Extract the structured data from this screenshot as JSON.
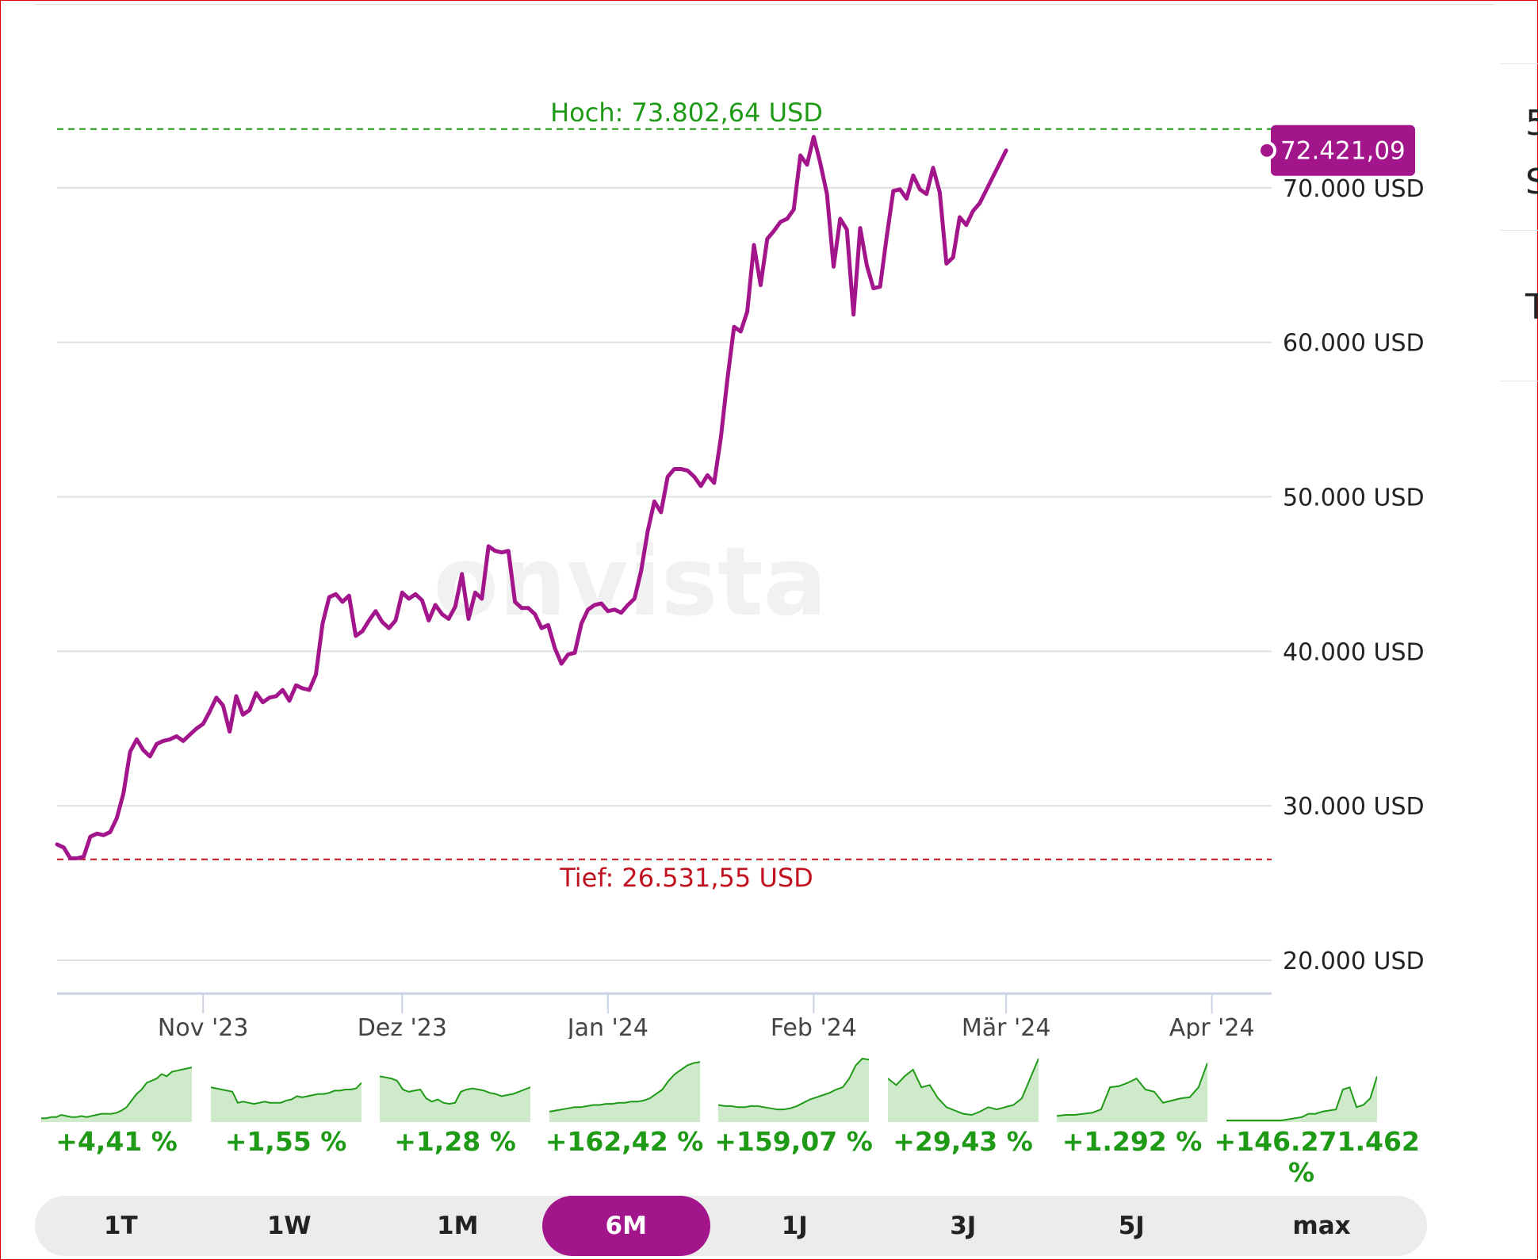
{
  "chart_data": {
    "type": "line",
    "x_start": "2023-10-10",
    "x_end": "2024-04-10",
    "ylim": [
      18000,
      76000
    ],
    "y_ticks": [
      20000,
      30000,
      40000,
      50000,
      60000,
      70000
    ],
    "y_tick_labels": [
      "20.000 USD",
      "30.000 USD",
      "40.000 USD",
      "50.000 USD",
      "60.000 USD",
      "70.000 USD"
    ],
    "x_ticks": [
      {
        "label": "Nov '23",
        "date": "2023-11-01"
      },
      {
        "label": "Dez '23",
        "date": "2023-12-01"
      },
      {
        "label": "Jan '24",
        "date": "2024-01-01"
      },
      {
        "label": "Feb '24",
        "date": "2024-02-01"
      },
      {
        "label": "Mär '24",
        "date": "2024-03-01"
      },
      {
        "label": "Apr '24",
        "date": "2024-04-01"
      }
    ],
    "high": {
      "label": "Hoch: 73.802,64 USD",
      "value": 73802.64,
      "color": "#1f9a17"
    },
    "low": {
      "label": "Tief: 26.531,55 USD",
      "value": 26531.55,
      "color": "#c1121f"
    },
    "last": {
      "label": "72.421,09",
      "value": 72421.09
    },
    "line_color": "#a3158b",
    "watermark": "onvista",
    "series": [
      {
        "points": [
          [
            "2023-10-10",
            27500
          ],
          [
            "2023-10-11",
            27300
          ],
          [
            "2023-10-12",
            26600
          ],
          [
            "2023-10-13",
            26600
          ],
          [
            "2023-10-14",
            26700
          ],
          [
            "2023-10-15",
            28000
          ],
          [
            "2023-10-16",
            28200
          ],
          [
            "2023-10-17",
            28100
          ],
          [
            "2023-10-18",
            28300
          ],
          [
            "2023-10-19",
            29200
          ],
          [
            "2023-10-20",
            30800
          ],
          [
            "2023-10-21",
            33500
          ],
          [
            "2023-10-22",
            34300
          ],
          [
            "2023-10-23",
            33600
          ],
          [
            "2023-10-24",
            33200
          ],
          [
            "2023-10-25",
            34000
          ],
          [
            "2023-10-26",
            34200
          ],
          [
            "2023-10-27",
            34300
          ],
          [
            "2023-10-28",
            34500
          ],
          [
            "2023-10-29",
            34200
          ],
          [
            "2023-10-30",
            34600
          ],
          [
            "2023-10-31",
            35000
          ],
          [
            "2023-11-01",
            35300
          ],
          [
            "2023-11-02",
            36100
          ],
          [
            "2023-11-03",
            37000
          ],
          [
            "2023-11-04",
            36500
          ],
          [
            "2023-11-05",
            34800
          ],
          [
            "2023-11-06",
            37100
          ],
          [
            "2023-11-07",
            35900
          ],
          [
            "2023-11-08",
            36200
          ],
          [
            "2023-11-09",
            37300
          ],
          [
            "2023-11-10",
            36700
          ],
          [
            "2023-11-11",
            37000
          ],
          [
            "2023-11-12",
            37100
          ],
          [
            "2023-11-13",
            37500
          ],
          [
            "2023-11-14",
            36800
          ],
          [
            "2023-11-15",
            37800
          ],
          [
            "2023-11-16",
            37600
          ],
          [
            "2023-11-17",
            37500
          ],
          [
            "2023-11-18",
            38500
          ],
          [
            "2023-11-19",
            41800
          ],
          [
            "2023-11-20",
            43500
          ],
          [
            "2023-11-21",
            43700
          ],
          [
            "2023-11-22",
            43200
          ],
          [
            "2023-11-23",
            43600
          ],
          [
            "2023-11-24",
            41000
          ],
          [
            "2023-11-25",
            41300
          ],
          [
            "2023-11-26",
            42000
          ],
          [
            "2023-11-27",
            42600
          ],
          [
            "2023-11-28",
            41900
          ],
          [
            "2023-11-29",
            41500
          ],
          [
            "2023-11-30",
            42000
          ],
          [
            "2023-12-01",
            43800
          ],
          [
            "2023-12-02",
            43400
          ],
          [
            "2023-12-03",
            43700
          ],
          [
            "2023-12-04",
            43300
          ],
          [
            "2023-12-05",
            42000
          ],
          [
            "2023-12-06",
            43000
          ],
          [
            "2023-12-07",
            42400
          ],
          [
            "2023-12-08",
            42100
          ],
          [
            "2023-12-09",
            42900
          ],
          [
            "2023-12-10",
            45000
          ],
          [
            "2023-12-11",
            42100
          ],
          [
            "2023-12-12",
            43800
          ],
          [
            "2023-12-13",
            43400
          ],
          [
            "2023-12-14",
            46800
          ],
          [
            "2023-12-15",
            46500
          ],
          [
            "2023-12-16",
            46400
          ],
          [
            "2023-12-17",
            46500
          ],
          [
            "2023-12-18",
            43200
          ],
          [
            "2023-12-19",
            42800
          ],
          [
            "2023-12-20",
            42800
          ],
          [
            "2023-12-21",
            42400
          ],
          [
            "2023-12-22",
            41500
          ],
          [
            "2023-12-23",
            41700
          ],
          [
            "2023-12-24",
            40200
          ],
          [
            "2023-12-25",
            39200
          ],
          [
            "2023-12-26",
            39800
          ],
          [
            "2023-12-27",
            39900
          ],
          [
            "2023-12-28",
            41800
          ],
          [
            "2023-12-29",
            42700
          ],
          [
            "2023-12-30",
            43000
          ],
          [
            "2023-12-31",
            43100
          ],
          [
            "2024-01-01",
            42600
          ],
          [
            "2024-01-02",
            42700
          ],
          [
            "2024-01-03",
            42500
          ],
          [
            "2024-01-04",
            43000
          ],
          [
            "2024-01-05",
            43400
          ],
          [
            "2024-01-06",
            45200
          ],
          [
            "2024-01-07",
            47800
          ],
          [
            "2024-01-08",
            49700
          ],
          [
            "2024-01-09",
            49000
          ],
          [
            "2024-01-10",
            51300
          ],
          [
            "2024-01-11",
            51800
          ],
          [
            "2024-01-12",
            51800
          ],
          [
            "2024-01-13",
            51700
          ],
          [
            "2024-01-14",
            51300
          ],
          [
            "2024-01-15",
            50700
          ],
          [
            "2024-01-16",
            51400
          ],
          [
            "2024-01-17",
            50900
          ],
          [
            "2024-01-18",
            53800
          ],
          [
            "2024-01-19",
            57600
          ],
          [
            "2024-01-20",
            61000
          ],
          [
            "2024-01-21",
            60700
          ],
          [
            "2024-01-22",
            62000
          ],
          [
            "2024-01-23",
            66300
          ],
          [
            "2024-01-24",
            63700
          ],
          [
            "2024-01-25",
            66700
          ],
          [
            "2024-01-26",
            67200
          ],
          [
            "2024-01-27",
            67800
          ],
          [
            "2024-01-28",
            68000
          ],
          [
            "2024-01-29",
            68600
          ],
          [
            "2024-01-30",
            72100
          ],
          [
            "2024-01-31",
            71500
          ],
          [
            "2024-02-01",
            73300
          ],
          [
            "2024-02-02",
            71600
          ],
          [
            "2024-02-03",
            69600
          ],
          [
            "2024-02-04",
            64900
          ],
          [
            "2024-02-05",
            68000
          ],
          [
            "2024-02-06",
            67300
          ],
          [
            "2024-02-07",
            61800
          ],
          [
            "2024-02-08",
            67400
          ],
          [
            "2024-02-09",
            65000
          ],
          [
            "2024-02-10",
            63500
          ],
          [
            "2024-02-11",
            63600
          ],
          [
            "2024-02-12",
            66800
          ],
          [
            "2024-02-13",
            69800
          ],
          [
            "2024-02-14",
            69900
          ],
          [
            "2024-02-15",
            69300
          ],
          [
            "2024-02-16",
            70800
          ],
          [
            "2024-02-17",
            69900
          ],
          [
            "2024-02-18",
            69600
          ],
          [
            "2024-02-19",
            71300
          ],
          [
            "2024-02-20",
            69700
          ],
          [
            "2024-02-21",
            65100
          ],
          [
            "2024-02-22",
            65500
          ],
          [
            "2024-02-23",
            68100
          ],
          [
            "2024-02-24",
            67600
          ],
          [
            "2024-02-25",
            68500
          ],
          [
            "2024-02-26",
            69000
          ],
          [
            "2024-03-01",
            72421.09
          ]
        ]
      }
    ]
  },
  "perf_tabs": [
    {
      "perf": "+4,41 %",
      "spark": [
        2,
        2,
        3,
        3,
        5,
        4,
        3,
        3,
        4,
        3,
        4,
        5,
        6,
        6,
        6,
        7,
        9,
        12,
        18,
        24,
        28,
        34,
        36,
        38,
        42,
        40,
        44,
        45,
        46,
        47,
        48
      ]
    },
    {
      "perf": "+1,55 %",
      "spark": [
        30,
        29,
        28,
        27,
        26,
        16,
        17,
        16,
        15,
        16,
        17,
        16,
        16,
        16,
        18,
        19,
        22,
        21,
        22,
        23,
        24,
        24,
        25,
        27,
        27,
        28,
        28,
        29,
        34
      ]
    },
    {
      "perf": "+1,28 %",
      "spark": [
        40,
        39,
        38,
        36,
        28,
        26,
        27,
        28,
        20,
        17,
        19,
        16,
        15,
        16,
        26,
        28,
        29,
        28,
        27,
        25,
        24,
        22,
        23,
        24,
        26,
        28,
        30
      ]
    },
    {
      "perf": "+162,42 %",
      "spark": [
        8,
        9,
        10,
        11,
        12,
        12,
        13,
        14,
        14,
        15,
        15,
        16,
        16,
        17,
        17,
        18,
        20,
        24,
        28,
        36,
        42,
        46,
        50,
        52,
        53
      ]
    },
    {
      "perf": "+159,07 %",
      "spark": [
        14,
        13,
        13,
        12,
        12,
        13,
        13,
        12,
        11,
        10,
        10,
        11,
        13,
        16,
        19,
        21,
        23,
        25,
        28,
        30,
        38,
        50,
        56,
        55
      ]
    },
    {
      "perf": "+29,43 %",
      "spark": [
        38,
        32,
        40,
        46,
        30,
        32,
        20,
        12,
        9,
        6,
        5,
        8,
        12,
        10,
        12,
        14,
        20,
        38,
        56
      ]
    },
    {
      "perf": "+1.292 %",
      "spark": [
        4,
        5,
        5,
        6,
        7,
        10,
        30,
        31,
        34,
        38,
        28,
        26,
        16,
        18,
        20,
        21,
        30,
        52
      ]
    },
    {
      "perf": "+146.271.462 %",
      "spark": [
        0,
        0,
        0,
        0,
        0,
        0,
        0,
        0,
        0,
        1,
        2,
        3,
        6,
        6,
        8,
        9,
        10,
        28,
        30,
        12,
        14,
        20,
        40
      ]
    }
  ],
  "time_tabs": [
    {
      "label": "1T",
      "active": false
    },
    {
      "label": "1W",
      "active": false
    },
    {
      "label": "1M",
      "active": false
    },
    {
      "label": "6M",
      "active": true
    },
    {
      "label": "1J",
      "active": false
    },
    {
      "label": "3J",
      "active": false
    },
    {
      "label": "5J",
      "active": false
    },
    {
      "label": "max",
      "active": false
    }
  ],
  "right_rail": {
    "chars": [
      "5",
      "S",
      "T"
    ]
  },
  "colors": {
    "accent": "#a3158b",
    "up": "#1f9a17",
    "spark_fill": "#cfe9cb",
    "tabs_bg": "#ececec"
  }
}
